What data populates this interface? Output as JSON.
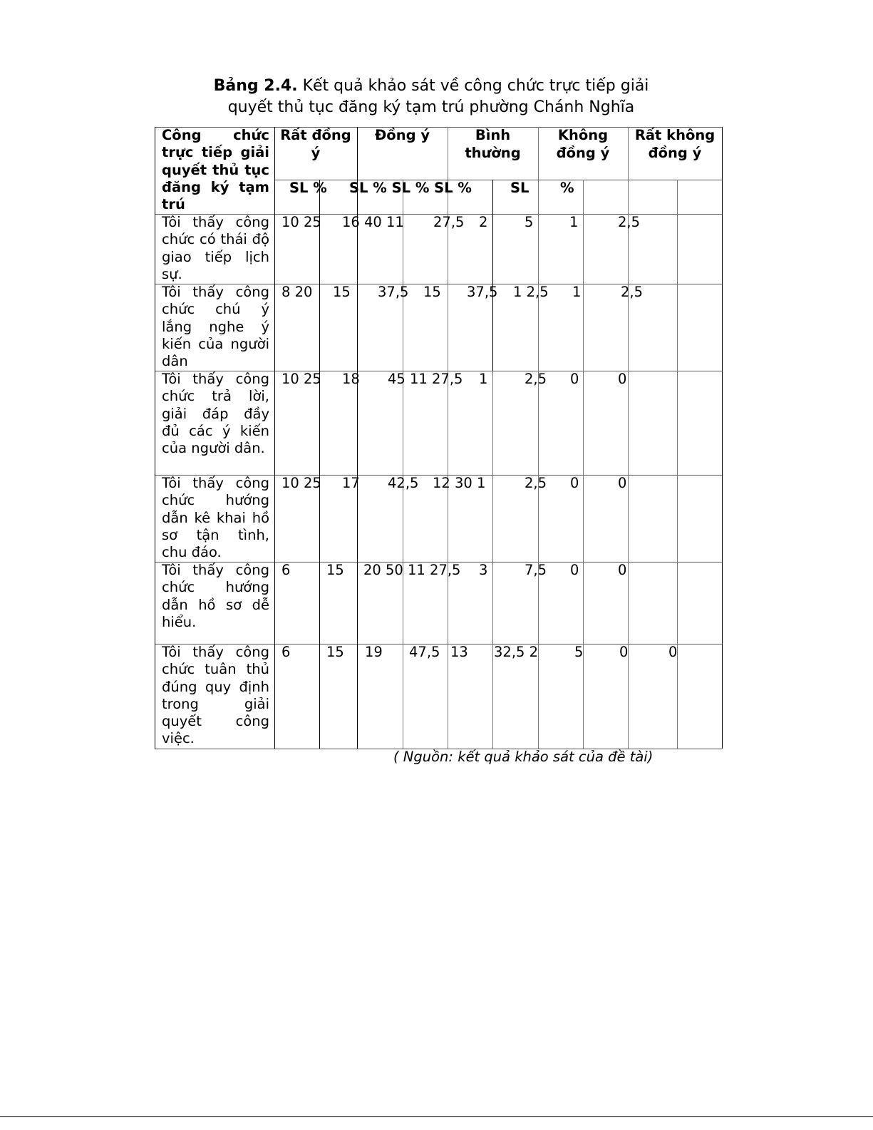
{
  "title": {
    "prefix": "Bảng 2.4.",
    "line1": " Kết quả khảo sát về công chức trực tiếp giải",
    "line2": "quyết thủ tục đăng ký tạm trú phường Chánh Nghĩa"
  },
  "table": {
    "corner_header": "Công chức trực tiếp giải quyết thủ tục đăng ký tạm trú",
    "group_headers": [
      "Rất đồng ý",
      "Đồng ý",
      "Bình thường",
      "Không đồng ý",
      "Rất không đồng ý"
    ],
    "group_header_fragments": [
      "đồng ý",
      "Rất",
      "Đồng ý",
      "thường",
      "Bình",
      "Không",
      "đồng ý",
      "Rất không đồng ý"
    ],
    "sub_headers": [
      "SL %",
      "SL % SL % SL %",
      "SL",
      "%"
    ],
    "rows": [
      {
        "label": "Tôi thấy công chức có thái độ giao tiếp lịch sự.",
        "cells": [
          "10 25",
          "16 40 11",
          "27,5",
          "2",
          "5",
          "1",
          "2,5"
        ]
      },
      {
        "label": "Tôi thấy công chức chú ý lắng nghe ý kiến của người dân",
        "cells": [
          "8 20",
          "15",
          "37,5",
          "15",
          "37,5",
          "1 2,5",
          "1",
          "2,5"
        ]
      },
      {
        "label": "Tôi thấy công chức trả lời, giải đáp đầy đủ các ý kiến của người dân.",
        "cells": [
          "10 25",
          "18",
          "45 11 27,5",
          "1",
          "2,5",
          "0",
          "0"
        ]
      },
      {
        "label": "Tôi thấy công chức hướng dẫn kê khai hồ sơ tận tình, chu đáo.",
        "cells": [
          "10 25",
          "17",
          "42,5",
          "12 30 1",
          "2,5",
          "0",
          "0"
        ]
      },
      {
        "label": "Tôi thấy công chức hướng dẫn hồ sơ dễ hiểu.",
        "cells": [
          "6",
          "15",
          "20 50 11 27,5",
          "3",
          "7,5",
          "0",
          "0"
        ]
      },
      {
        "label": "Tôi thấy công chức tuân thủ đúng quy định trong giải quyết công việc.",
        "cells": [
          "6",
          "15",
          "19",
          "47,5",
          "13",
          "32,5 2",
          "5",
          "0",
          "0"
        ]
      }
    ]
  },
  "source": "( Nguồn: kết quả khảo sát của đề tài)"
}
